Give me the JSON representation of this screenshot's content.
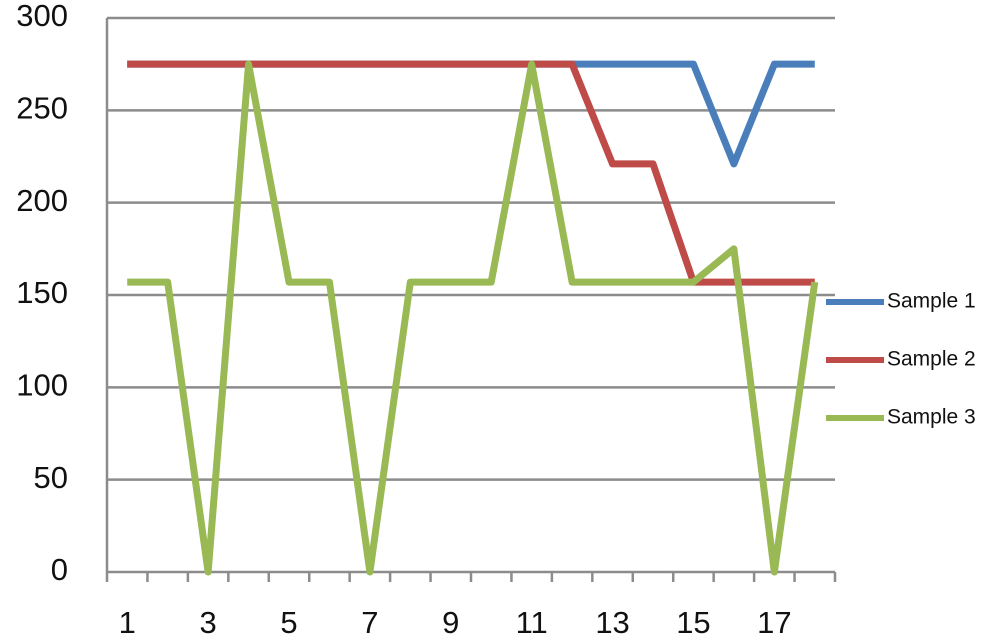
{
  "chart_data": {
    "type": "line",
    "categories": [
      1,
      null,
      3,
      null,
      5,
      null,
      7,
      null,
      9,
      null,
      11,
      null,
      13,
      null,
      15,
      null,
      17,
      null
    ],
    "series": [
      {
        "name": "Sample 1",
        "color": "#4a7ebb",
        "values": [
          275,
          275,
          275,
          275,
          275,
          275,
          275,
          275,
          275,
          275,
          275,
          275,
          275,
          275,
          275,
          221,
          275,
          275
        ]
      },
      {
        "name": "Sample 2",
        "color": "#be4b48",
        "values": [
          275,
          275,
          275,
          275,
          275,
          275,
          275,
          275,
          275,
          275,
          275,
          275,
          221,
          221,
          157,
          157,
          157,
          157
        ]
      },
      {
        "name": "Sample 3",
        "color": "#98b954",
        "values": [
          157,
          157,
          0,
          275,
          157,
          157,
          0,
          157,
          157,
          157,
          275,
          157,
          157,
          157,
          157,
          175,
          0,
          157
        ]
      }
    ],
    "ylim": [
      0,
      300
    ],
    "yticks": [
      0,
      50,
      100,
      150,
      200,
      250,
      300
    ],
    "grid": true,
    "legend": "right"
  }
}
